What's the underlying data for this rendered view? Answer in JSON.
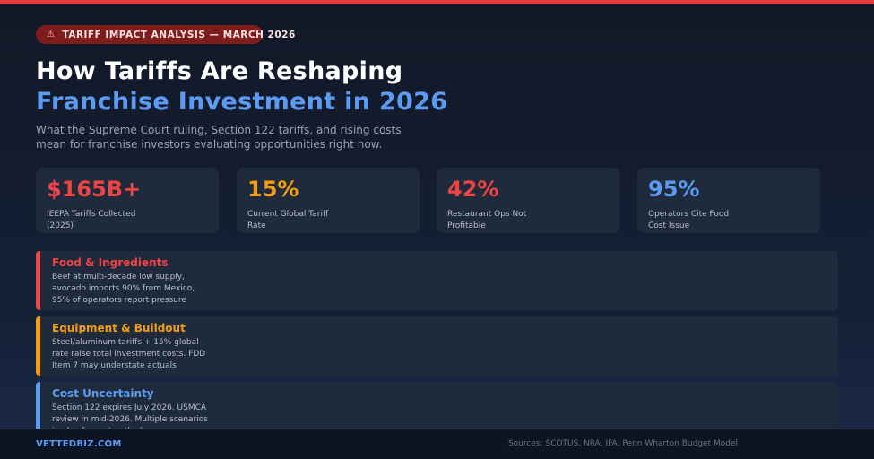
{
  "colors": {
    "accent_red": "#e23b3b",
    "accent_orange": "#f59e0b",
    "accent_blue": "#5b9cf2",
    "background": "#111827",
    "card": "#1f2a3d"
  },
  "badge": {
    "icon": "warning-icon",
    "icon_glyph": "⚠",
    "text": "TARIFF IMPACT ANALYSIS — MARCH 2026"
  },
  "header": {
    "title_line1": "How Tariffs Are Reshaping",
    "title_line2": "Franchise Investment in 2026",
    "subtitle": "What the Supreme Court ruling, Section 122 tariffs, and rising costs mean for franchise investors evaluating opportunities right now."
  },
  "stats": [
    {
      "value": "$165B+",
      "label": "IEEPA Tariffs Collected (2025)",
      "color": "#ef4444"
    },
    {
      "value": "15%",
      "label": "Current Global Tariff Rate",
      "color": "#f59e0b"
    },
    {
      "value": "42%",
      "label": "Restaurant Ops Not Profitable",
      "color": "#ef4444"
    },
    {
      "value": "95%",
      "label": "Operators Cite Food Cost Issue",
      "color": "#5b9cf2"
    }
  ],
  "cards": [
    {
      "title": "Food & Ingredients",
      "body": "Beef at multi-decade low supply, avocado imports 90% from Mexico, 95% of operators report pressure",
      "color": "#ef4444"
    },
    {
      "title": "Equipment & Buildout",
      "body": "Steel/aluminum tariffs + 15% global rate raise total investment costs. FDD Item 7 may understate actuals",
      "color": "#f59e0b"
    },
    {
      "title": "Cost Uncertainty",
      "body": "Section 122 expires July 2026. USMCA review in mid-2026. Multiple scenarios in play for cost outlook",
      "color": "#5b9cf2"
    }
  ],
  "footer": {
    "brand": "VETTEDBIZ.COM",
    "sources": "Sources: SCOTUS, NRA, IFA, Penn Wharton Budget Model"
  }
}
